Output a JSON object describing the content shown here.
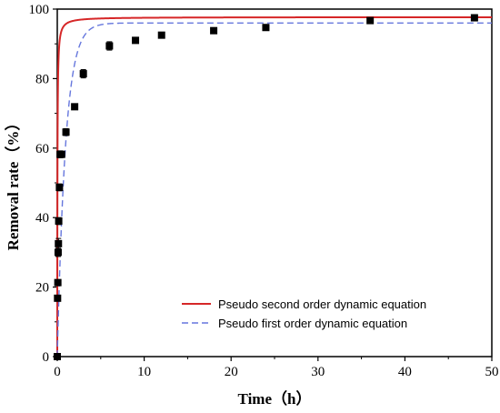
{
  "chart_data": {
    "type": "scatter",
    "xlabel": "Time（h）",
    "ylabel": "Removal rate（%）",
    "xlim": [
      0,
      50
    ],
    "ylim": [
      0,
      100
    ],
    "x_ticks": [
      0,
      10,
      20,
      30,
      40,
      50
    ],
    "y_ticks": [
      0,
      20,
      40,
      60,
      80,
      100
    ],
    "grid": false,
    "legend_position": "bottom-right",
    "points": {
      "x": [
        0,
        0.0333,
        0.0667,
        0.1,
        0.1333,
        0.1667,
        0.25,
        0.333,
        0.5,
        1,
        2,
        3,
        6,
        9,
        12,
        18,
        24,
        36,
        48
      ],
      "y": [
        0,
        16.8,
        21.3,
        30,
        32.5,
        39,
        48.7,
        58.2,
        58.2,
        64.6,
        71.9,
        81.4,
        89.4,
        91,
        92.5,
        93.8,
        94.7,
        96.7,
        97.5
      ],
      "error": [
        0.5,
        0.8,
        0.8,
        1.2,
        1.5,
        1,
        1,
        1,
        0.8,
        1,
        0.8,
        1.2,
        1.2,
        0.8,
        0.8,
        0.8,
        0.8,
        0.8,
        0.8
      ],
      "color": "#000000"
    },
    "series": [
      {
        "name": "Pseudo second order dynamic equation",
        "model": "pseudo-second-order",
        "qe": 97.7,
        "k": 0.5,
        "color": "#d62728",
        "style": "solid"
      },
      {
        "name": "Pseudo first order dynamic equation",
        "model": "pseudo-first-order",
        "qe": 96.0,
        "k": 1.05,
        "color": "#6677dd",
        "style": "dashed"
      }
    ]
  }
}
